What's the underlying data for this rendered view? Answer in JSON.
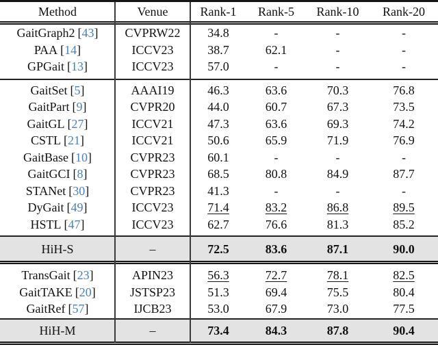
{
  "colors": {
    "citation_link": "#4a82c0",
    "highlight_row_bg": "#e3e3e3",
    "rule": "#151515"
  },
  "punct": {
    "open": "[",
    "close": "]"
  },
  "header": {
    "method": "Method",
    "venue": "Venue",
    "rank1": "Rank-1",
    "rank5": "Rank-5",
    "rank10": "Rank-10",
    "rank20": "Rank-20"
  },
  "sections": {
    "s1": {
      "rows": [
        {
          "method": "GaitGraph2",
          "cite": "43",
          "venue": "CVPRW22",
          "r1": "34.8",
          "r5": "-",
          "r10": "-",
          "r20": "-"
        },
        {
          "method": "PAA",
          "cite": "14",
          "venue": "ICCV23",
          "r1": "38.7",
          "r5": "62.1",
          "r10": "-",
          "r20": "-"
        },
        {
          "method": "GPGait",
          "cite": "13",
          "venue": "ICCV23",
          "r1": "57.0",
          "r5": "-",
          "r10": "-",
          "r20": "-"
        }
      ]
    },
    "s2": {
      "rows": [
        {
          "method": "GaitSet",
          "cite": "5",
          "venue": "AAAI19",
          "r1": "46.3",
          "r5": "63.6",
          "r10": "70.3",
          "r20": "76.8"
        },
        {
          "method": "GaitPart",
          "cite": "9",
          "venue": "CVPR20",
          "r1": "44.0",
          "r5": "60.7",
          "r10": "67.3",
          "r20": "73.5"
        },
        {
          "method": "GaitGL",
          "cite": "27",
          "venue": "ICCV21",
          "r1": "47.3",
          "r5": "63.6",
          "r10": "69.3",
          "r20": "74.2"
        },
        {
          "method": "CSTL",
          "cite": "21",
          "venue": "ICCV21",
          "r1": "50.6",
          "r5": "65.9",
          "r10": "71.9",
          "r20": "76.9"
        },
        {
          "method": "GaitBase",
          "cite": "10",
          "venue": "CVPR23",
          "r1": "60.1",
          "r5": "-",
          "r10": "-",
          "r20": "-"
        },
        {
          "method": "GaitGCI",
          "cite": "8",
          "venue": "CVPR23",
          "r1": "68.5",
          "r5": "80.8",
          "r10": "84.9",
          "r20": "87.7"
        },
        {
          "method": "STANet",
          "cite": "30",
          "venue": "CVPR23",
          "r1": "41.3",
          "r5": "-",
          "r10": "-",
          "r20": "-"
        },
        {
          "method": "DyGait",
          "cite": "49",
          "venue": "ICCV23",
          "r1": "71.4",
          "r5": "83.2",
          "r10": "86.8",
          "r20": "89.5"
        },
        {
          "method": "HSTL",
          "cite": "47",
          "venue": "ICCV23",
          "r1": "62.7",
          "r5": "76.6",
          "r10": "81.3",
          "r20": "85.2"
        }
      ]
    },
    "s3": {
      "rows": [
        {
          "method": "TransGait",
          "cite": "23",
          "venue": "APIN23",
          "r1": "56.3",
          "r5": "72.7",
          "r10": "78.1",
          "r20": "82.5"
        },
        {
          "method": "GaitTAKE",
          "cite": "20",
          "venue": "JSTSP23",
          "r1": "51.3",
          "r5": "69.4",
          "r10": "75.5",
          "r20": "80.4"
        },
        {
          "method": "GaitRef",
          "cite": "57",
          "venue": "IJCB23",
          "r1": "53.0",
          "r5": "67.9",
          "r10": "73.0",
          "r20": "77.5"
        }
      ]
    }
  },
  "highlight_rows": {
    "hih_s": {
      "method": "HiH-S",
      "venue": "–",
      "r1": "72.5",
      "r5": "83.6",
      "r10": "87.1",
      "r20": "90.0"
    },
    "hih_m": {
      "method": "HiH-M",
      "venue": "–",
      "r1": "73.4",
      "r5": "84.3",
      "r10": "87.8",
      "r20": "90.4"
    }
  }
}
